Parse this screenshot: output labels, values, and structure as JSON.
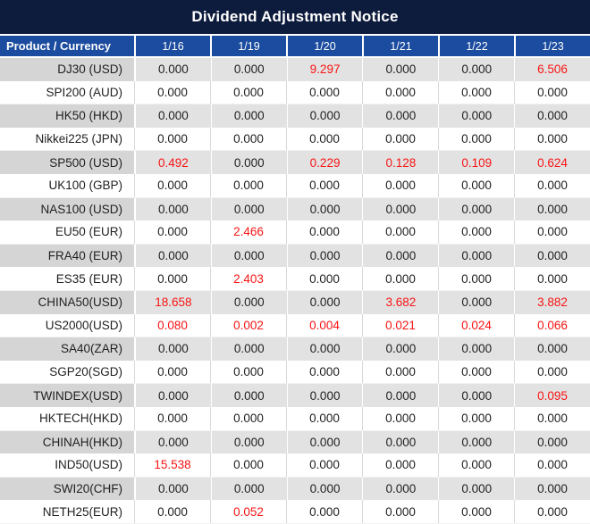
{
  "chart_data": {
    "type": "table",
    "title": "Dividend Adjustment Notice",
    "columns": [
      "Product / Currency",
      "1/16",
      "1/19",
      "1/20",
      "1/21",
      "1/22",
      "1/23"
    ],
    "rows": [
      [
        "DJ30 (USD)",
        "0.000",
        "0.000",
        "9.297",
        "0.000",
        "0.000",
        "6.506"
      ],
      [
        "SPI200 (AUD)",
        "0.000",
        "0.000",
        "0.000",
        "0.000",
        "0.000",
        "0.000"
      ],
      [
        "HK50 (HKD)",
        "0.000",
        "0.000",
        "0.000",
        "0.000",
        "0.000",
        "0.000"
      ],
      [
        "Nikkei225 (JPN)",
        "0.000",
        "0.000",
        "0.000",
        "0.000",
        "0.000",
        "0.000"
      ],
      [
        "SP500 (USD)",
        "0.492",
        "0.000",
        "0.229",
        "0.128",
        "0.109",
        "0.624"
      ],
      [
        "UK100 (GBP)",
        "0.000",
        "0.000",
        "0.000",
        "0.000",
        "0.000",
        "0.000"
      ],
      [
        "NAS100 (USD)",
        "0.000",
        "0.000",
        "0.000",
        "0.000",
        "0.000",
        "0.000"
      ],
      [
        "EU50 (EUR)",
        "0.000",
        "2.466",
        "0.000",
        "0.000",
        "0.000",
        "0.000"
      ],
      [
        "FRA40 (EUR)",
        "0.000",
        "0.000",
        "0.000",
        "0.000",
        "0.000",
        "0.000"
      ],
      [
        "ES35 (EUR)",
        "0.000",
        "2.403",
        "0.000",
        "0.000",
        "0.000",
        "0.000"
      ],
      [
        "CHINA50(USD)",
        "18.658",
        "0.000",
        "0.000",
        "3.682",
        "0.000",
        "3.882"
      ],
      [
        "US2000(USD)",
        "0.080",
        "0.002",
        "0.004",
        "0.021",
        "0.024",
        "0.066"
      ],
      [
        "SA40(ZAR)",
        "0.000",
        "0.000",
        "0.000",
        "0.000",
        "0.000",
        "0.000"
      ],
      [
        "SGP20(SGD)",
        "0.000",
        "0.000",
        "0.000",
        "0.000",
        "0.000",
        "0.000"
      ],
      [
        "TWINDEX(USD)",
        "0.000",
        "0.000",
        "0.000",
        "0.000",
        "0.000",
        "0.095"
      ],
      [
        "HKTECH(HKD)",
        "0.000",
        "0.000",
        "0.000",
        "0.000",
        "0.000",
        "0.000"
      ],
      [
        "CHINAH(HKD)",
        "0.000",
        "0.000",
        "0.000",
        "0.000",
        "0.000",
        "0.000"
      ],
      [
        "IND50(USD)",
        "15.538",
        "0.000",
        "0.000",
        "0.000",
        "0.000",
        "0.000"
      ],
      [
        "SWI20(CHF)",
        "0.000",
        "0.000",
        "0.000",
        "0.000",
        "0.000",
        "0.000"
      ],
      [
        "NETH25(EUR)",
        "0.000",
        "0.052",
        "0.000",
        "0.000",
        "0.000",
        "0.000"
      ]
    ],
    "layout_hints": {
      "highlight_rule": "non-zero values rendered in red",
      "row_striping": "alternating gray/white starting gray"
    }
  },
  "colors": {
    "title_bar_bg": "#0d1b3c",
    "header_bg": "#1c4c9f",
    "header_text": "#ffffff",
    "value_text": "#1f1f1f",
    "highlight_text": "#f81414",
    "gray_row_product_bg": "#d5d5d5",
    "gray_row_value_bg": "#e2e2e2"
  }
}
